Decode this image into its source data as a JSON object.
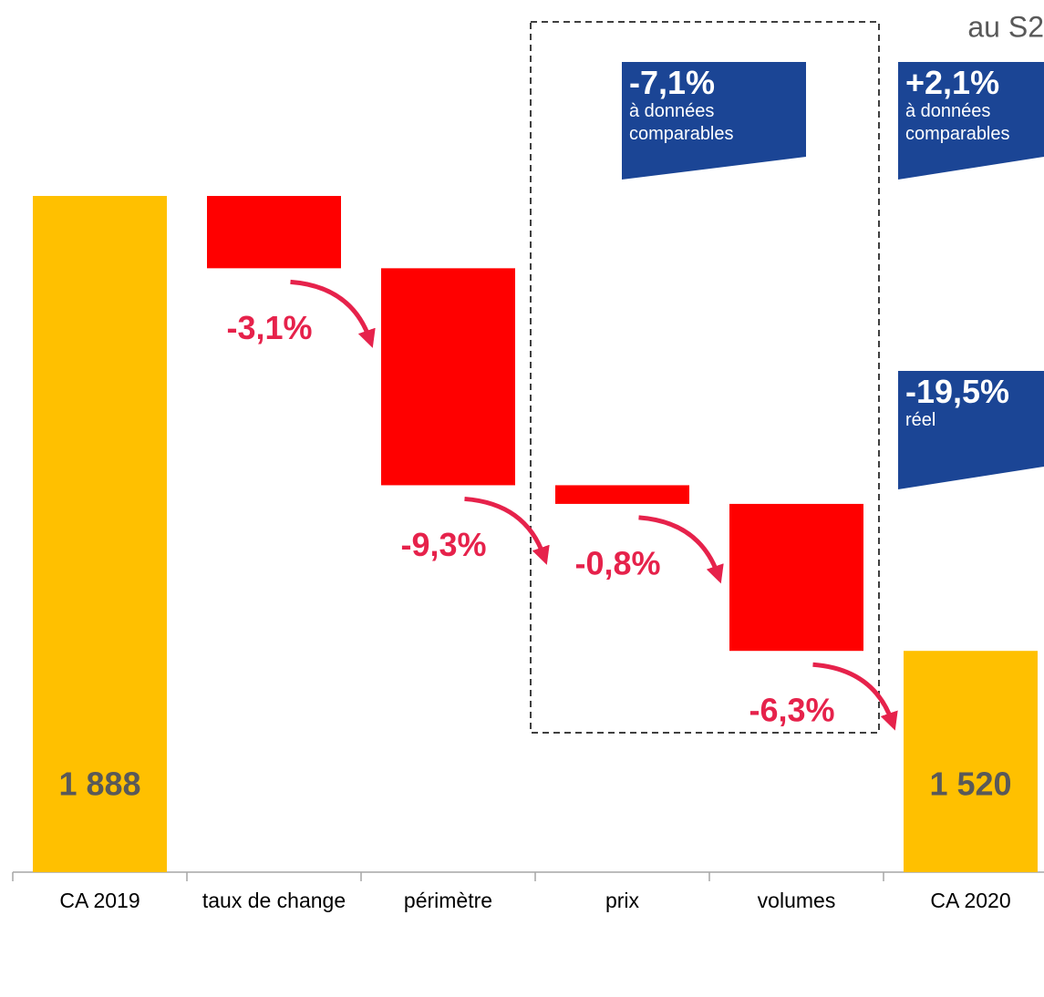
{
  "chart_data": {
    "type": "waterfall",
    "categories": [
      "CA 2019",
      "taux de change",
      "périmètre",
      "prix",
      "volumes",
      "CA 2020"
    ],
    "measure": [
      "absolute",
      "relative",
      "relative",
      "relative",
      "relative",
      "absolute"
    ],
    "values": [
      1888,
      -3.1,
      -9.3,
      -0.8,
      -6.3,
      1520
    ],
    "value_labels": [
      "1 888",
      "-3,1%",
      "-9,3%",
      "-0,8%",
      "-6,3%",
      "1 520"
    ],
    "colors": {
      "absolute": "#FFC000",
      "relative": "#FF0000"
    },
    "subtitle": "au S2",
    "annotations": [
      {
        "value": "-7,1%",
        "note": "à données comparables"
      },
      {
        "value": "+2,1%",
        "note": "à données comparables"
      },
      {
        "value": "-19,5%",
        "note": "réel"
      }
    ]
  }
}
